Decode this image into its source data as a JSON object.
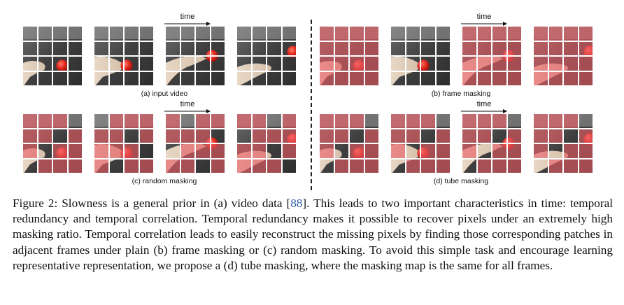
{
  "figure": {
    "time_label": "time",
    "panels": [
      {
        "id": "a",
        "caption": "(a) input video",
        "masks": [
          [
            0,
            0,
            0,
            0,
            0,
            0,
            0,
            0,
            0,
            0,
            0,
            0,
            0,
            0,
            0,
            0
          ],
          [
            0,
            0,
            0,
            0,
            0,
            0,
            0,
            0,
            0,
            0,
            0,
            0,
            0,
            0,
            0,
            0
          ],
          [
            0,
            0,
            0,
            0,
            0,
            0,
            0,
            0,
            0,
            0,
            0,
            0,
            0,
            0,
            0,
            0
          ],
          [
            0,
            0,
            0,
            0,
            0,
            0,
            0,
            0,
            0,
            0,
            0,
            0,
            0,
            0,
            0,
            0
          ]
        ]
      },
      {
        "id": "b",
        "caption": "(b) frame masking",
        "masks": [
          [
            1,
            1,
            1,
            1,
            1,
            1,
            1,
            1,
            1,
            1,
            1,
            1,
            1,
            1,
            1,
            1
          ],
          [
            0,
            0,
            0,
            0,
            0,
            0,
            0,
            0,
            0,
            0,
            0,
            0,
            0,
            0,
            0,
            0
          ],
          [
            1,
            1,
            1,
            1,
            1,
            1,
            1,
            1,
            1,
            1,
            1,
            1,
            1,
            1,
            1,
            1
          ],
          [
            1,
            1,
            1,
            1,
            1,
            1,
            1,
            1,
            1,
            1,
            1,
            1,
            1,
            1,
            1,
            1
          ]
        ]
      },
      {
        "id": "c",
        "caption": "(c) random masking",
        "masks": [
          [
            1,
            1,
            1,
            0,
            1,
            1,
            0,
            1,
            1,
            0,
            1,
            1,
            0,
            1,
            1,
            1
          ],
          [
            0,
            1,
            1,
            1,
            1,
            1,
            0,
            1,
            1,
            1,
            1,
            0,
            1,
            0,
            1,
            1
          ],
          [
            1,
            0,
            1,
            1,
            1,
            1,
            1,
            0,
            0,
            1,
            1,
            1,
            1,
            1,
            0,
            1
          ],
          [
            1,
            1,
            0,
            1,
            0,
            1,
            1,
            1,
            1,
            1,
            0,
            1,
            1,
            1,
            1,
            0
          ]
        ]
      },
      {
        "id": "d",
        "caption": "(d) tube masking",
        "masks": [
          [
            1,
            1,
            1,
            0,
            1,
            1,
            0,
            1,
            1,
            0,
            1,
            1,
            0,
            1,
            1,
            1
          ],
          [
            1,
            1,
            1,
            0,
            1,
            1,
            0,
            1,
            1,
            0,
            1,
            1,
            0,
            1,
            1,
            1
          ],
          [
            1,
            1,
            1,
            0,
            1,
            1,
            0,
            1,
            1,
            0,
            1,
            1,
            0,
            1,
            1,
            1
          ],
          [
            1,
            1,
            1,
            0,
            1,
            1,
            0,
            1,
            1,
            0,
            1,
            1,
            0,
            1,
            1,
            1
          ]
        ]
      }
    ]
  },
  "caption": {
    "lead": "Figure 2: Slowness is a general prior in (a) video data [",
    "citation": "88",
    "rest": "]. This leads to two important characteristics in time: temporal redundancy and temporal correlation. Temporal redundancy makes it possible to recover pixels under an extremely high masking ratio. Temporal correlation leads to easily reconstruct the missing pixels by finding those corresponding patches in adjacent frames under plain (b) frame masking or (c) random masking. To avoid this simple task and encourage learning representative representation, we propose a (d) tube masking, where the masking map is the same for all frames."
  },
  "colors": {
    "mask": "#e85c64",
    "citation": "#2a5ca8"
  }
}
